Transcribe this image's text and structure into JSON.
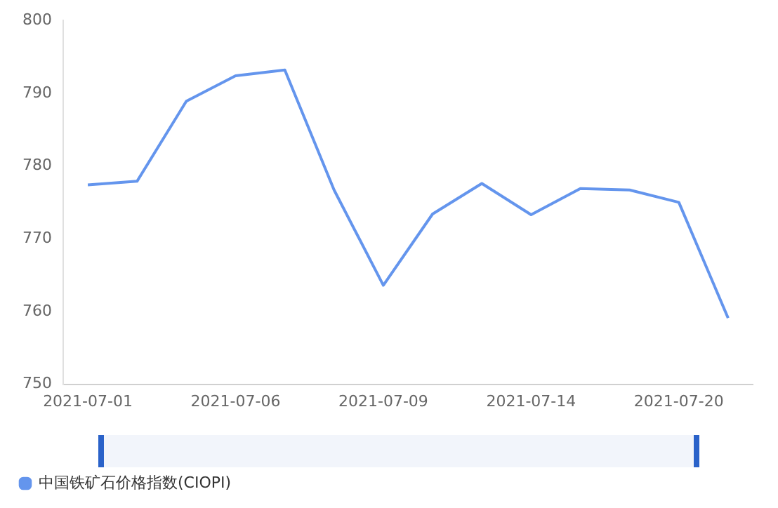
{
  "chart_data": {
    "type": "line",
    "categories": [
      "2021-07-01",
      null,
      null,
      "2021-07-06",
      null,
      null,
      "2021-07-09",
      null,
      null,
      "2021-07-14",
      null,
      null,
      "2021-07-20",
      null
    ],
    "series": [
      {
        "name": "中国铁矿石价格指数(CIOPI)",
        "color": "#6495ed",
        "values": [
          777.4,
          777.9,
          788.9,
          792.4,
          793.2,
          776.7,
          763.6,
          773.4,
          777.6,
          773.3,
          776.9,
          776.7,
          775.0,
          759.1
        ]
      }
    ],
    "ylim": [
      750,
      800
    ],
    "yticks": [
      750,
      760,
      770,
      780,
      790,
      800
    ],
    "grid": false,
    "legend": "bottom left",
    "marker": "none",
    "line_style": "solid"
  }
}
